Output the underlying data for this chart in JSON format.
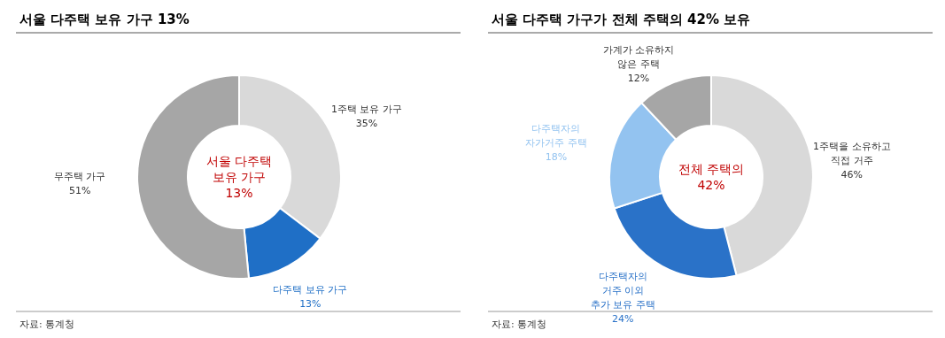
{
  "chart_data": [
    {
      "type": "donut",
      "title": "서울 다주택 보유 가구 13%",
      "categories": [
        "1주택 보유 가구",
        "다주택 보유 가구",
        "무주택 가구"
      ],
      "values": [
        35,
        13,
        51
      ],
      "colors": [
        "#d9d9d9",
        "#1f6fc6",
        "#a6a6a6"
      ],
      "value_labels": [
        "35%",
        "13%",
        "51%"
      ],
      "annotations": [
        "서울 다주택\n보유 가구\n13%",
        "자료: 통계청"
      ]
    },
    {
      "type": "donut",
      "title": "서울 다주택 가구가 전체 주택의 42% 보유",
      "categories": [
        "1주택을 소유하고\n직접 거주",
        "다주택자의\n거주 이외\n추가 보유 주택",
        "다주택자의\n자가거주 주택",
        "가계가 소유하지\n않은 주택"
      ],
      "values": [
        46,
        24,
        18,
        12
      ],
      "colors": [
        "#d9d9d9",
        "#2a72c8",
        "#93c3f0",
        "#a6a6a6"
      ],
      "value_labels": [
        "46%",
        "24%",
        "18%",
        "12%"
      ],
      "annotations": [
        "전체 주택의\n42%",
        "자료: 통계청"
      ]
    }
  ]
}
